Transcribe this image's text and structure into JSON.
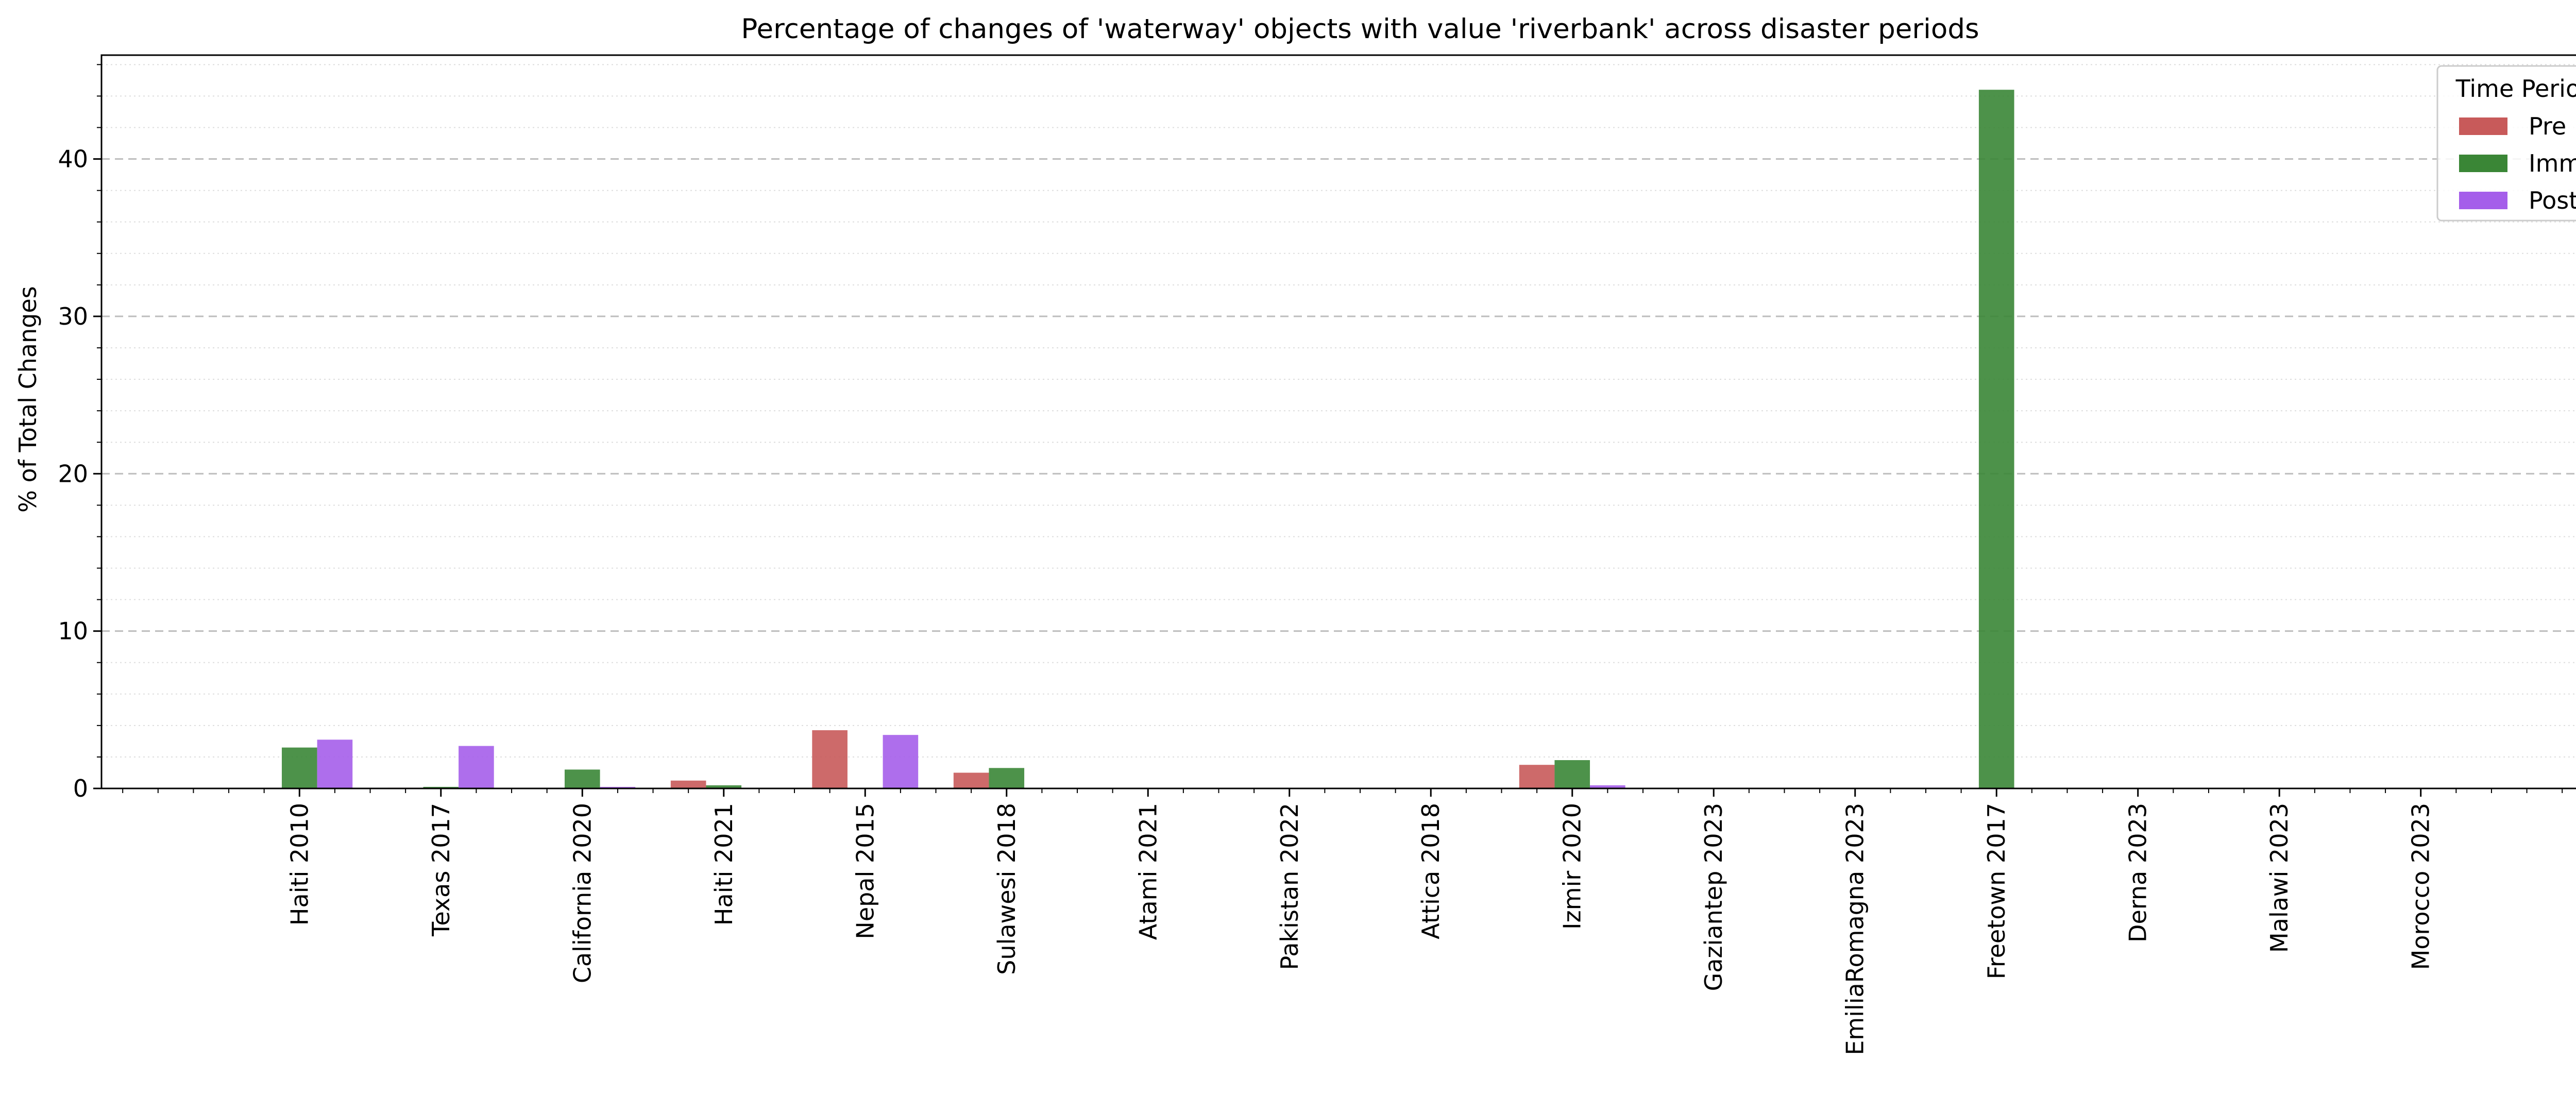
{
  "chart_data": {
    "type": "bar",
    "title": "Percentage of changes of 'waterway' objects with value 'riverbank' across disaster periods",
    "xlabel": "",
    "ylabel": "% of Total Changes",
    "ylim": [
      0,
      46.6
    ],
    "yticks": [
      0,
      10,
      20,
      30,
      40
    ],
    "ytick_labels": [
      "0",
      "10",
      "20",
      "30",
      "40"
    ],
    "grid": {
      "major": "dashed",
      "minor": "dotted",
      "axis": "y"
    },
    "legend": {
      "title": "Time Period",
      "placement": "top-right"
    },
    "categories": [
      "Haiti 2010",
      "Texas 2017",
      "California 2020",
      "Haiti 2021",
      "Nepal 2015",
      "Sulawesi 2018",
      "Atami 2021",
      "Pakistan 2022",
      "Attica 2018",
      "Izmir 2020",
      "Gaziantep 2023",
      "EmiliaRomagna 2023",
      "Freetown 2017",
      "Derna 2023",
      "Malawi 2023",
      "Morocco 2023"
    ],
    "series": [
      {
        "name": "Pre",
        "color": "#c85a5a",
        "values": [
          0,
          0.05,
          0,
          0.5,
          3.7,
          1.0,
          0,
          0,
          0,
          1.5,
          0,
          0,
          0,
          0,
          0,
          0
        ]
      },
      {
        "name": "Imm",
        "color": "#3a8636",
        "values": [
          2.6,
          0.1,
          1.2,
          0.2,
          0,
          1.3,
          0,
          0,
          0,
          1.8,
          0,
          0,
          44.4,
          0,
          0,
          0
        ]
      },
      {
        "name": "Post",
        "color": "#a55eea",
        "values": [
          3.1,
          2.7,
          0.1,
          0,
          3.4,
          0,
          0,
          0,
          0,
          0.2,
          0,
          0,
          0,
          0,
          0,
          0
        ]
      }
    ]
  }
}
